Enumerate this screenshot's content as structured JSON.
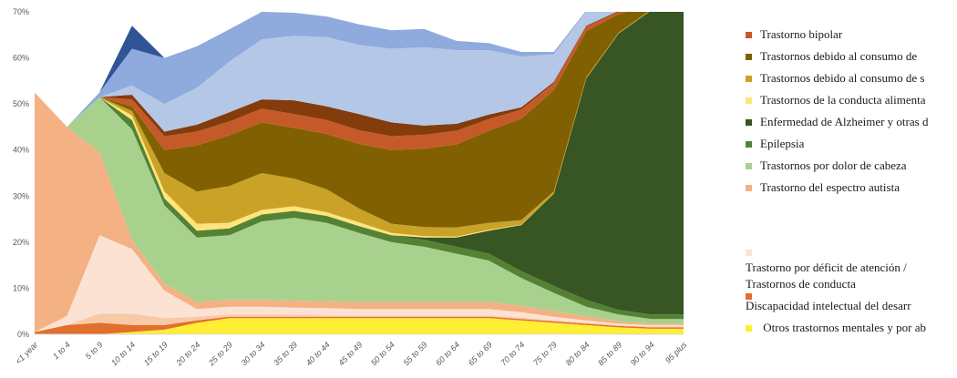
{
  "chart_data": {
    "type": "area",
    "stacked": true,
    "x": [
      "<1 year",
      "1 to 4",
      "5 to 9",
      "10 to 14",
      "15 to 19",
      "20 to 24",
      "25 to 29",
      "30 to 34",
      "35 to 39",
      "40 to 44",
      "45 to 49",
      "50 to 54",
      "55 to 59",
      "60 to 64",
      "65 to 69",
      "70 to 74",
      "75 to 79",
      "80 to 84",
      "85 to 89",
      "90 to 94",
      "95 plus"
    ],
    "yticks": [
      "0%",
      "10%",
      "20%",
      "30%",
      "40%",
      "50%",
      "60%",
      "70%"
    ],
    "ylim": [
      0,
      70
    ],
    "series": [
      {
        "name": "Otros trastornos mentales y por ab",
        "color": "#ffee33",
        "values": [
          0,
          0,
          0,
          0.5,
          1,
          2.5,
          3.5,
          3.5,
          3.5,
          3.5,
          3.5,
          3.5,
          3.5,
          3.5,
          3.5,
          3,
          2.5,
          2,
          1.5,
          1.2,
          1.2
        ]
      },
      {
        "name": "Discapacidad intelectual del desarr",
        "color": "#e26f2c",
        "values": [
          0.5,
          2,
          2.5,
          1.5,
          1,
          0.5,
          0.3,
          0.3,
          0.3,
          0.3,
          0.3,
          0.3,
          0.3,
          0.3,
          0.3,
          0.3,
          0.3,
          0.3,
          0.3,
          0.3,
          0.3
        ]
      },
      {
        "name": "Trastorno de conducta",
        "color": "#f7c9a6",
        "values": [
          0,
          0,
          2,
          2.5,
          1.5,
          0.8,
          0.5,
          0.5,
          0.4,
          0.3,
          0.3,
          0.3,
          0.3,
          0.3,
          0.3,
          0.3,
          0.2,
          0.2,
          0.2,
          0.2,
          0.2
        ]
      },
      {
        "name": "Trastorno por déficit de atención /",
        "color": "#fbe2d3",
        "values": [
          0,
          2,
          17,
          14,
          6,
          1.7,
          1.7,
          1.7,
          1.6,
          1.6,
          1.4,
          1.4,
          1.4,
          1.4,
          1.4,
          1.2,
          0.8,
          0.5,
          0.3,
          0.3,
          0.3
        ]
      },
      {
        "name": "Trastorno del espectro autista",
        "color": "#f4b183",
        "values": [
          52,
          41,
          18,
          2,
          1.5,
          1.5,
          1.5,
          1.5,
          1.5,
          1.5,
          1.5,
          1.5,
          1.5,
          1.5,
          1.5,
          1.4,
          1.2,
          1,
          0.5,
          0.3,
          0.3
        ]
      },
      {
        "name": "Trastornos por dolor de cabeza",
        "color": "#a9d18e",
        "values": [
          0,
          0,
          12,
          24,
          17,
          14,
          14,
          17,
          18,
          17,
          15,
          13,
          12,
          10.5,
          9,
          6,
          4,
          2,
          1.5,
          1,
          1
        ]
      },
      {
        "name": "Epilepsia",
        "color": "#548235",
        "values": [
          0,
          0,
          0,
          2,
          1.5,
          1.5,
          1.5,
          1.5,
          1.5,
          1.5,
          1.5,
          1.5,
          1.5,
          1.5,
          1.5,
          1.5,
          1.5,
          1.5,
          1,
          1,
          1
        ]
      },
      {
        "name": "Enfermedad de Alzheimer y otras d",
        "color": "#375623",
        "values": [
          0,
          0,
          0,
          0,
          0,
          0,
          0,
          0,
          0,
          0,
          0,
          0,
          0.5,
          2,
          5,
          10,
          20,
          48,
          60,
          66,
          66
        ]
      },
      {
        "name": "Trastornos de la conducta alimenta",
        "color": "#ffe57a",
        "values": [
          0,
          0,
          0,
          1,
          1.5,
          1.5,
          1.2,
          1,
          1,
          0.8,
          0.8,
          0.5,
          0.3,
          0.2,
          0.2,
          0.1,
          0,
          0,
          0,
          0,
          0
        ]
      },
      {
        "name": "Trastornos debido al consumo de s",
        "color": "#c9a227",
        "values": [
          0,
          0,
          0,
          1,
          4,
          7,
          8,
          8,
          6,
          5,
          3,
          2,
          2,
          2,
          1.5,
          1,
          0.5,
          0.3,
          0.2,
          0.2,
          0.2
        ]
      },
      {
        "name": "Trastornos debido  al consumo de",
        "color": "#806000",
        "values": [
          0,
          0,
          0,
          1,
          5,
          10,
          11,
          11,
          11,
          12,
          14,
          16,
          17,
          18,
          20,
          22,
          22,
          10,
          4,
          1,
          1
        ]
      },
      {
        "name": "Trastorno bipolar",
        "color": "#c55a28",
        "values": [
          0,
          0,
          0,
          1.5,
          3,
          3,
          3,
          3,
          3,
          3,
          3,
          3,
          3,
          3,
          2.5,
          2,
          1.5,
          1,
          0.5,
          0.2,
          0.2
        ]
      },
      {
        "name": "",
        "color": "#843c0c",
        "values": [
          0,
          0,
          0,
          1,
          1,
          1.5,
          2,
          2,
          3,
          3,
          3.5,
          3,
          2,
          1.5,
          1,
          0.5,
          0.3,
          0.2,
          0.2,
          0.1,
          0.1
        ]
      },
      {
        "name": "",
        "color": "#b4c7e7",
        "values": [
          0,
          0,
          0,
          2,
          6,
          8,
          11,
          13,
          14,
          15,
          15,
          16,
          17,
          16,
          14,
          11,
          6,
          3,
          2,
          1,
          1
        ]
      },
      {
        "name": "",
        "color": "#8faadc",
        "values": [
          0,
          0,
          1,
          8,
          10,
          9,
          7,
          6,
          5,
          4.5,
          4.5,
          4,
          4,
          2,
          1.5,
          1,
          0.5,
          0.3,
          0.2,
          0.1,
          0.1
        ]
      },
      {
        "name": "",
        "color": "#2f5597",
        "values": [
          0,
          0,
          0,
          5,
          0,
          0,
          0,
          0,
          0,
          0,
          0,
          0,
          0,
          0,
          0,
          0,
          0,
          0,
          0,
          0,
          0
        ]
      }
    ],
    "legend_position": "right"
  },
  "legend": {
    "items": [
      {
        "label": "Trastorno bipolar",
        "color": "#c55a28"
      },
      {
        "label": "Trastornos debido  al consumo de",
        "color": "#806000"
      },
      {
        "label": "Trastornos debido al consumo de s",
        "color": "#c9a227"
      },
      {
        "label": "Trastornos de la conducta alimenta",
        "color": "#ffe57a"
      },
      {
        "label": "Enfermedad de Alzheimer y otras d",
        "color": "#375623"
      },
      {
        "label": "Epilepsia",
        "color": "#548235"
      },
      {
        "label": "Trastornos por dolor de cabeza",
        "color": "#a9d18e"
      },
      {
        "label": "Trastorno del espectro autista",
        "color": "#f4b183"
      }
    ],
    "adhd_label": "Trastorno por déficit de atención /",
    "adhd_color": "#fbe2d3",
    "conduct_label": "Trastornos de conducta",
    "conduct_color": "#f7c9a6",
    "intellectual_label": "Discapacidad intelectual del desarr",
    "intellectual_color": "#e26f2c",
    "other_label": "Otros trastornos mentales y por ab",
    "other_color": "#ffee33"
  }
}
